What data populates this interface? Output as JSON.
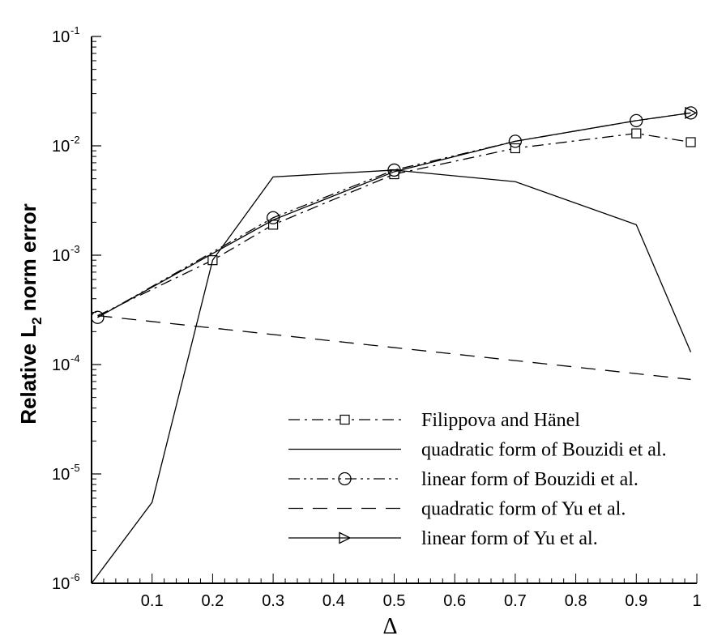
{
  "chart_data": {
    "type": "line",
    "title": "",
    "xlabel": "Δ",
    "ylabel_parts": {
      "pre": "Relative L",
      "sub": "2",
      "post": " norm error"
    },
    "xlim": [
      0,
      1
    ],
    "ylim": [
      1e-06,
      0.1
    ],
    "yscale": "log",
    "xticks": [
      0.1,
      0.2,
      0.3,
      0.4,
      0.5,
      0.6,
      0.7,
      0.8,
      0.9,
      1.0
    ],
    "xtick_labels": [
      "0.1",
      "0.2",
      "0.3",
      "0.4",
      "0.5",
      "0.6",
      "0.7",
      "0.8",
      "0.9",
      "1"
    ],
    "yticks": [
      {
        "value": 1e-06,
        "base": "10",
        "exp": "-6"
      },
      {
        "value": 1e-05,
        "base": "10",
        "exp": "-5"
      },
      {
        "value": 0.0001,
        "base": "10",
        "exp": "-4"
      },
      {
        "value": 0.001,
        "base": "10",
        "exp": "-3"
      },
      {
        "value": 0.01,
        "base": "10",
        "exp": "-2"
      },
      {
        "value": 0.1,
        "base": "10",
        "exp": "-1"
      }
    ],
    "grid": false,
    "legend_position": "bottom-right",
    "series": [
      {
        "name": "Filippova and Hänel",
        "x": [
          0.01,
          0.2,
          0.3,
          0.5,
          0.7,
          0.9,
          0.99
        ],
        "y": [
          0.00028,
          0.0009,
          0.0019,
          0.0055,
          0.0095,
          0.013,
          0.0108
        ],
        "dash": "dashdot",
        "marker": "square",
        "marker_at": [
          1,
          2,
          3,
          4,
          5,
          6
        ]
      },
      {
        "name": "quadratic form of Bouzidi et al.",
        "x": [
          0.0,
          0.1,
          0.2,
          0.3,
          0.5,
          0.7,
          0.9,
          0.99
        ],
        "y": [
          1e-06,
          5.5e-06,
          0.0009,
          0.0052,
          0.006,
          0.0047,
          0.0019,
          0.00013
        ],
        "dash": "solid",
        "marker": "none",
        "marker_at": []
      },
      {
        "name": "linear form of Bouzidi et al.",
        "x": [
          0.01,
          0.3,
          0.5,
          0.7,
          0.9,
          0.99
        ],
        "y": [
          0.00027,
          0.0022,
          0.006,
          0.011,
          0.017,
          0.02
        ],
        "dash": "dashdotdot",
        "marker": "circle",
        "marker_at": [
          0,
          1,
          2,
          3,
          4,
          5
        ]
      },
      {
        "name": "quadratic form of Yu et al.",
        "x": [
          0.01,
          0.99
        ],
        "y": [
          0.00028,
          7.3e-05
        ],
        "dash": "dashed",
        "marker": "none",
        "marker_at": []
      },
      {
        "name": "linear form of Yu et al.",
        "x": [
          0.01,
          0.3,
          0.5,
          0.7,
          0.9,
          0.99
        ],
        "y": [
          0.00027,
          0.0021,
          0.0058,
          0.011,
          0.017,
          0.02
        ],
        "dash": "solid",
        "marker": "triangle-right",
        "marker_at": [
          5
        ]
      }
    ]
  }
}
